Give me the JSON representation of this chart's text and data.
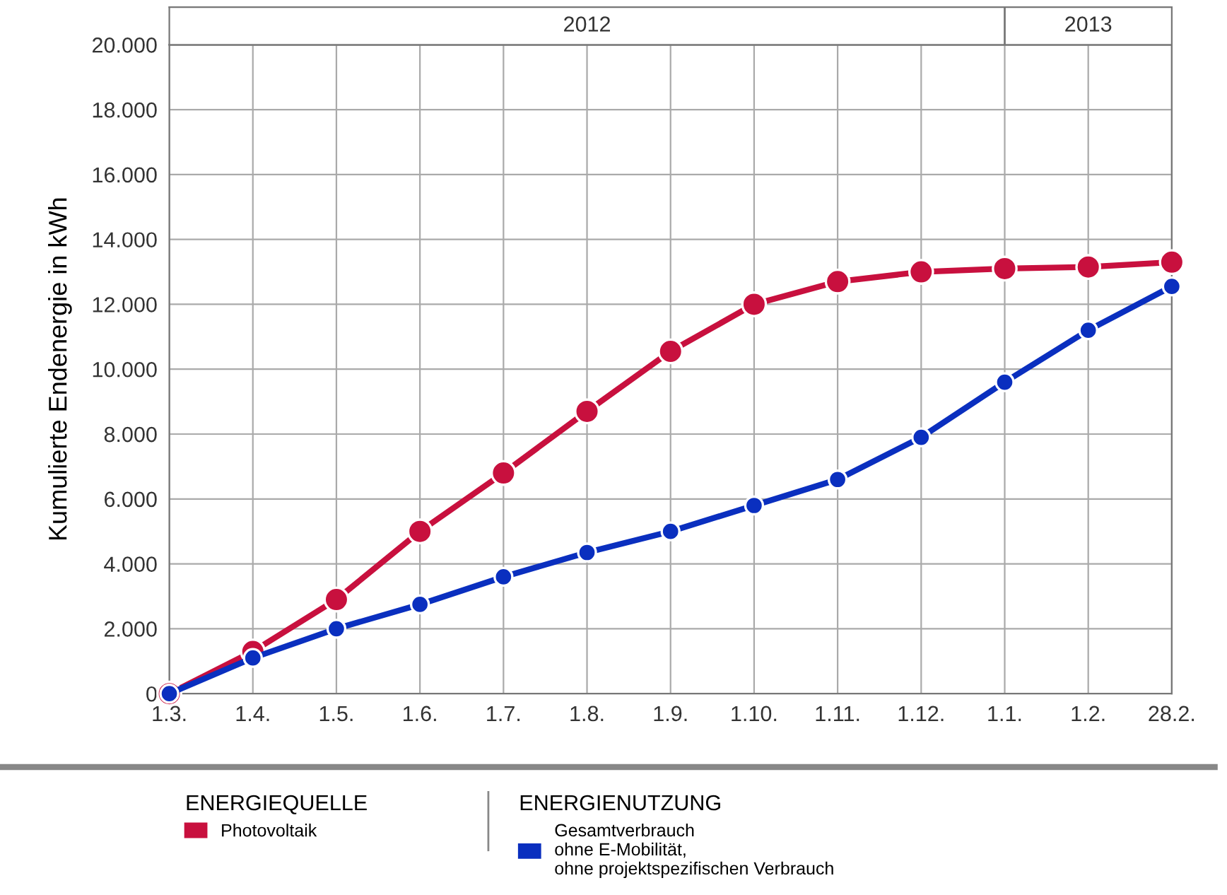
{
  "chart_data": {
    "type": "line",
    "ylabel": "Kumulierte Endenergie in kWh",
    "categories": [
      "1.3.",
      "1.4.",
      "1.5.",
      "1.6.",
      "1.7.",
      "1.8.",
      "1.9.",
      "1.10.",
      "1.11.",
      "1.12.",
      "1.1.",
      "1.2.",
      "28.2."
    ],
    "series": [
      {
        "name": "Photovoltaik",
        "color": "#c8103e",
        "values": [
          0,
          1300,
          2900,
          5000,
          6800,
          8700,
          10550,
          12000,
          12700,
          13000,
          13100,
          13150,
          13300
        ]
      },
      {
        "name": "Gesamtverbrauch\nohne E-Mobilität,\nohne projektspezifischen Verbrauch",
        "color": "#0a2fbf",
        "values": [
          0,
          1100,
          2000,
          2750,
          3600,
          4350,
          5000,
          5800,
          6600,
          7900,
          9600,
          11200,
          12550
        ]
      }
    ],
    "ylim": [
      0,
      20000
    ],
    "yticks": [
      {
        "value": 0,
        "label": "0"
      },
      {
        "value": 2000,
        "label": "2.000"
      },
      {
        "value": 4000,
        "label": "4.000"
      },
      {
        "value": 6000,
        "label": "6.000"
      },
      {
        "value": 8000,
        "label": "8.000"
      },
      {
        "value": 10000,
        "label": "10.000"
      },
      {
        "value": 12000,
        "label": "12.000"
      },
      {
        "value": 14000,
        "label": "14.000"
      },
      {
        "value": 16000,
        "label": "16.000"
      },
      {
        "value": 18000,
        "label": "18.000"
      },
      {
        "value": 20000,
        "label": "20.000"
      }
    ],
    "annotations": [
      "2012",
      "2013",
      "ENERGIEQUELLE",
      "ENERGIENUTZUNG"
    ],
    "grid": true,
    "legend": "bottom",
    "marker": "circle",
    "line_style": "solid"
  }
}
